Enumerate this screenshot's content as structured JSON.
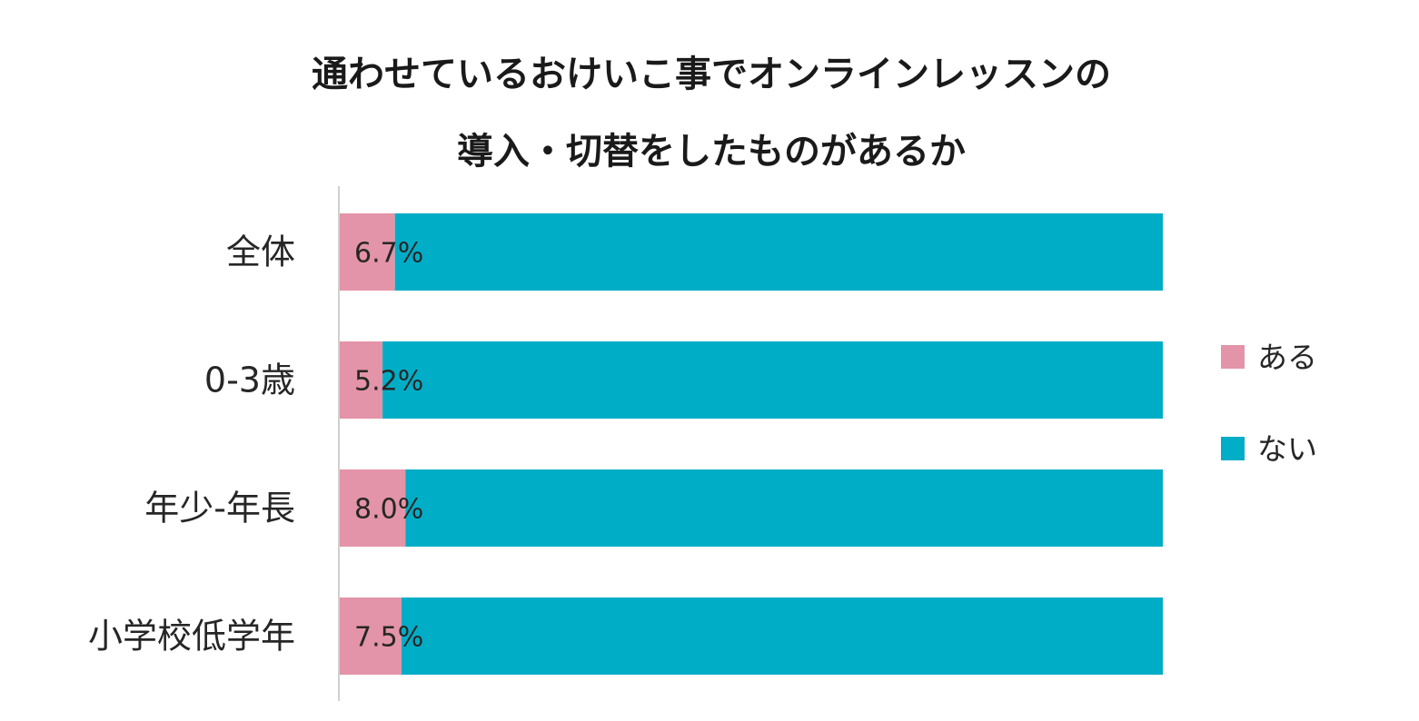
{
  "chart_data": {
    "type": "bar",
    "orientation": "horizontal",
    "stacked": true,
    "stack_mode": "percent",
    "title_lines": [
      "通わせているおけいこ事でオンラインレッスンの",
      "導入・切替をしたものがあるか"
    ],
    "categories": [
      "全体",
      "0-3歳",
      "年少-年長",
      "小学校低学年"
    ],
    "series": [
      {
        "name": "ある",
        "color": "#E394A8",
        "values": [
          6.7,
          5.2,
          8.0,
          7.5
        ],
        "labels": [
          "6.7%",
          "5.2%",
          "8.0%",
          "7.5%"
        ]
      },
      {
        "name": "ない",
        "color": "#00ADC6",
        "values": [
          93.3,
          94.8,
          92.0,
          92.5
        ]
      }
    ],
    "xlim": [
      0,
      100
    ],
    "grid": false,
    "legend_position": "right",
    "axis_color": "#d0d0d0"
  }
}
